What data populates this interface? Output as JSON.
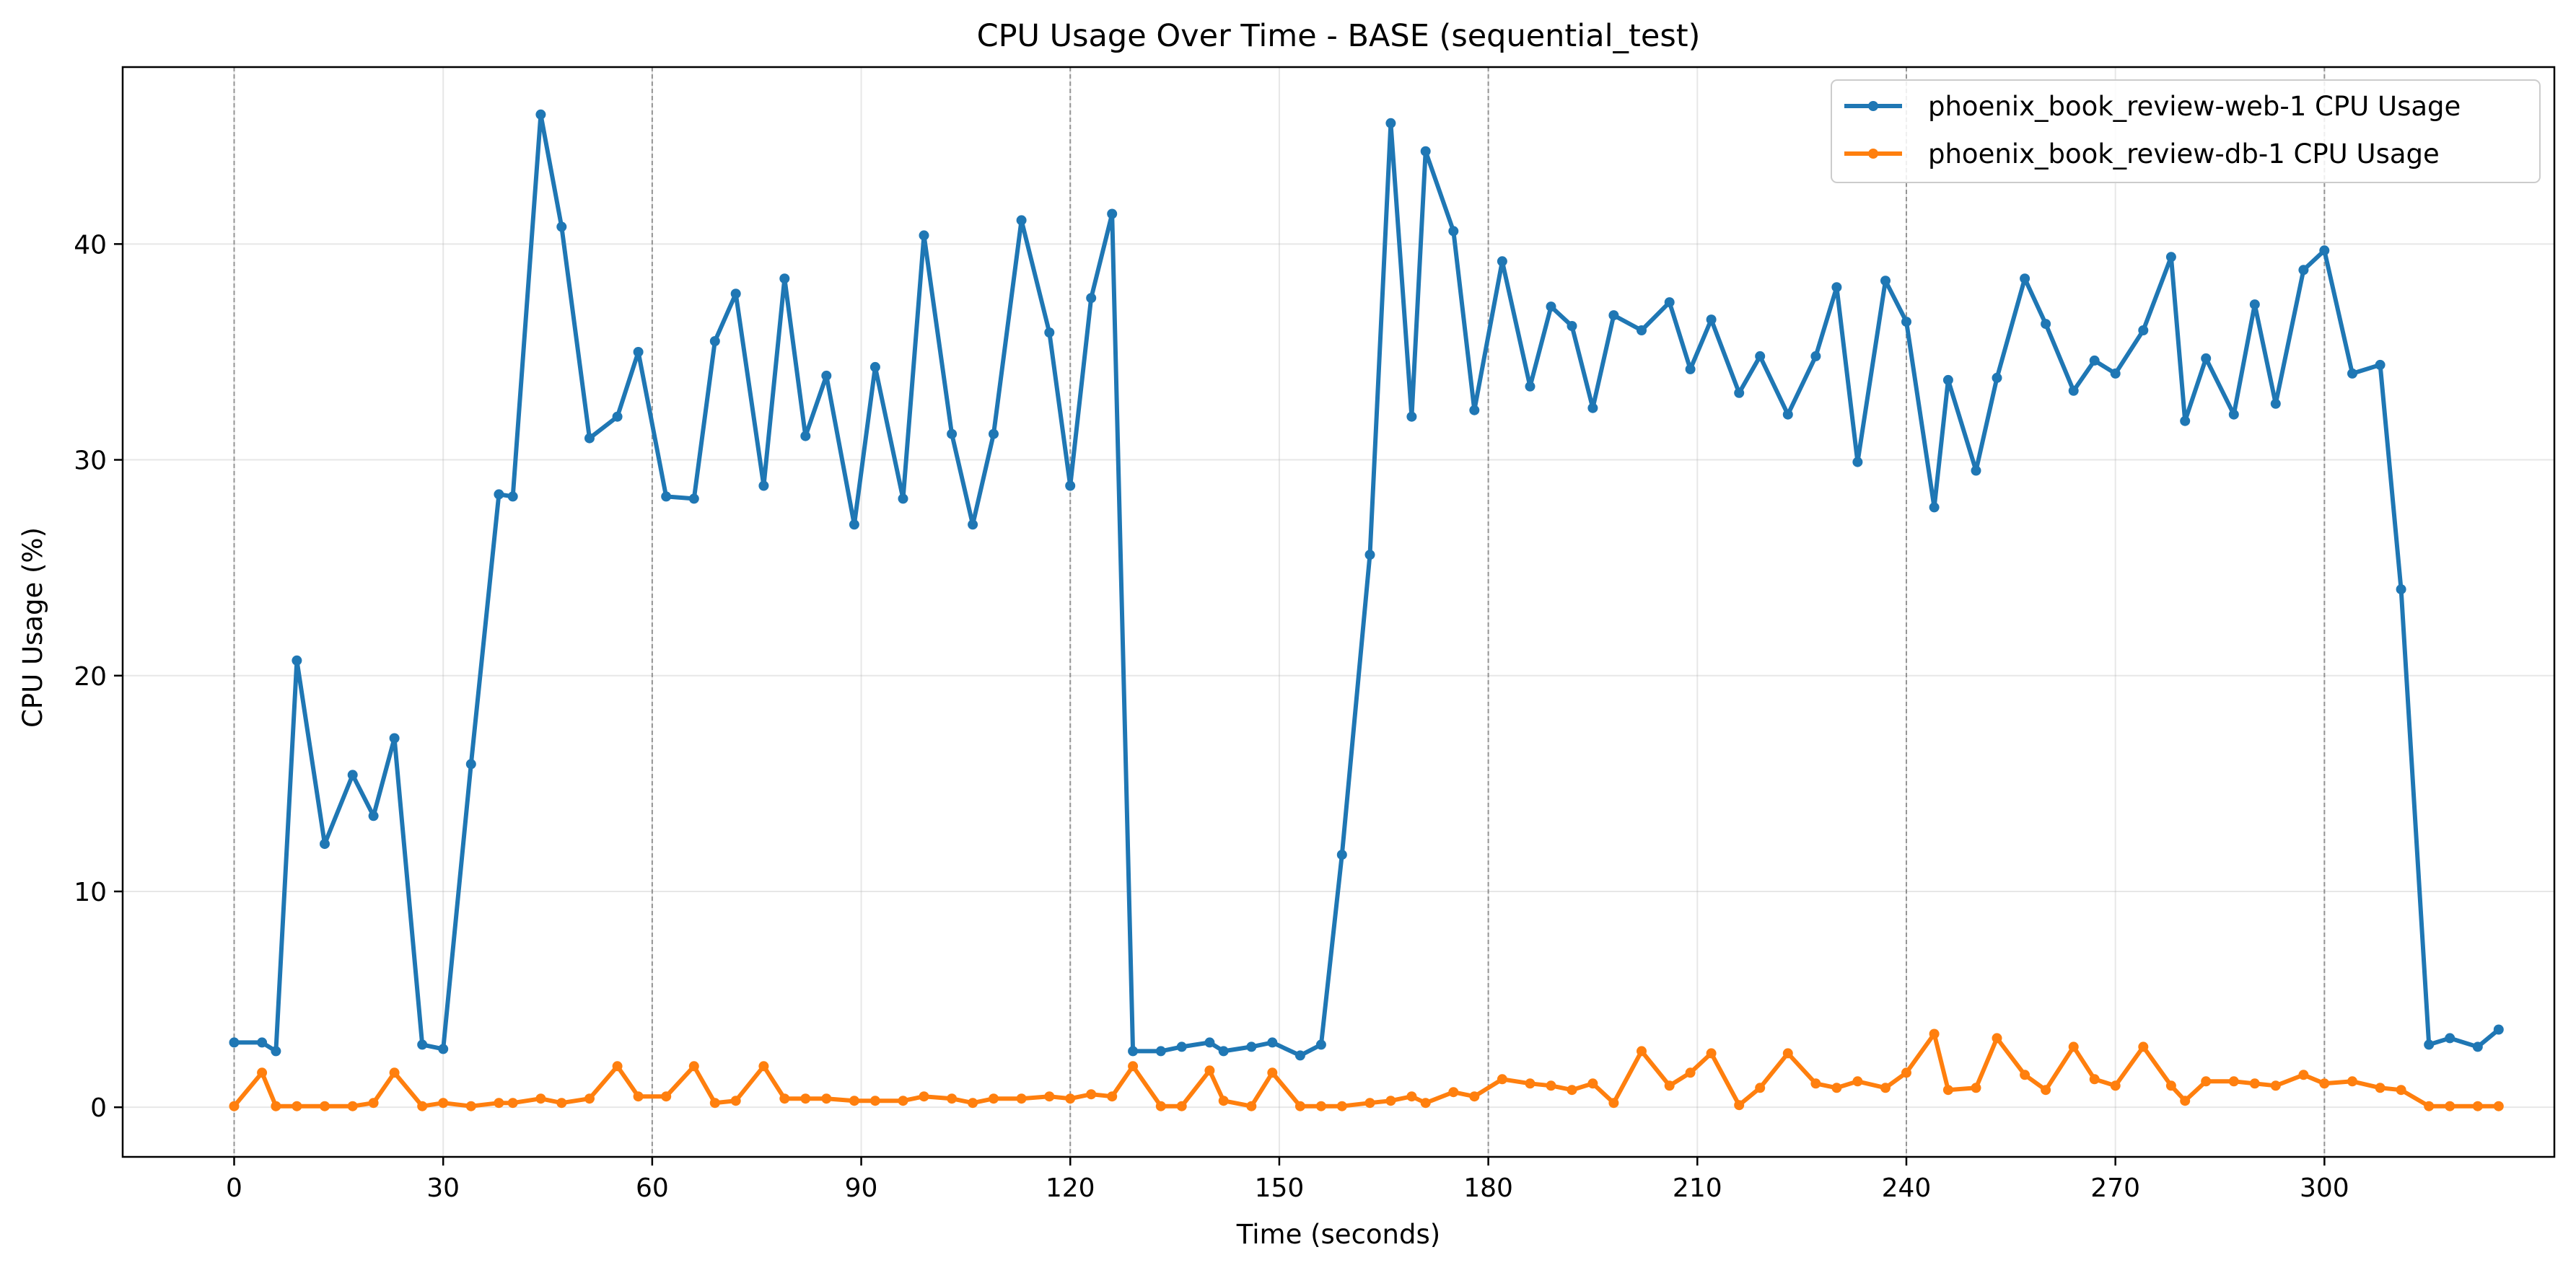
{
  "chart_data": {
    "type": "line",
    "title": "CPU Usage Over Time - BASE (sequential_test)",
    "xlabel": "Time (seconds)",
    "ylabel": "CPU Usage (%)",
    "xlim": [
      -16,
      333
    ],
    "ylim": [
      -2.3,
      48.2
    ],
    "xticks": [
      0,
      30,
      60,
      90,
      120,
      150,
      180,
      210,
      240,
      270,
      300
    ],
    "yticks": [
      0,
      10,
      20,
      30,
      40
    ],
    "vlines": [
      0,
      60,
      120,
      180,
      240,
      300
    ],
    "grid": true,
    "legend_position": "top-right",
    "series": [
      {
        "name": "phoenix_book_review-web-1 CPU Usage",
        "color": "#1f77b4",
        "points": [
          [
            0,
            3.0
          ],
          [
            4,
            3.0
          ],
          [
            6,
            2.6
          ],
          [
            9,
            20.7
          ],
          [
            13,
            12.2
          ],
          [
            17,
            15.4
          ],
          [
            20,
            13.5
          ],
          [
            23,
            17.1
          ],
          [
            27,
            2.9
          ],
          [
            30,
            2.7
          ],
          [
            34,
            15.9
          ],
          [
            38,
            28.4
          ],
          [
            40,
            28.3
          ],
          [
            44,
            46.0
          ],
          [
            47,
            40.8
          ],
          [
            51,
            31.0
          ],
          [
            55,
            32.0
          ],
          [
            58,
            35.0
          ],
          [
            62,
            28.3
          ],
          [
            66,
            28.2
          ],
          [
            69,
            35.5
          ],
          [
            72,
            37.7
          ],
          [
            76,
            28.8
          ],
          [
            79,
            38.4
          ],
          [
            82,
            31.1
          ],
          [
            85,
            33.9
          ],
          [
            89,
            27.0
          ],
          [
            92,
            34.3
          ],
          [
            96,
            28.2
          ],
          [
            99,
            40.4
          ],
          [
            103,
            31.2
          ],
          [
            106,
            27.0
          ],
          [
            109,
            31.2
          ],
          [
            113,
            41.1
          ],
          [
            117,
            35.9
          ],
          [
            120,
            28.8
          ],
          [
            123,
            37.5
          ],
          [
            126,
            41.4
          ],
          [
            129,
            2.6
          ],
          [
            133,
            2.6
          ],
          [
            136,
            2.8
          ],
          [
            140,
            3.0
          ],
          [
            142,
            2.6
          ],
          [
            146,
            2.8
          ],
          [
            149,
            3.0
          ],
          [
            153,
            2.4
          ],
          [
            156,
            2.9
          ],
          [
            159,
            11.7
          ],
          [
            163,
            25.6
          ],
          [
            166,
            45.6
          ],
          [
            169,
            32.0
          ],
          [
            171,
            44.3
          ],
          [
            175,
            40.6
          ],
          [
            178,
            32.3
          ],
          [
            182,
            39.2
          ],
          [
            186,
            33.4
          ],
          [
            189,
            37.1
          ],
          [
            192,
            36.2
          ],
          [
            195,
            32.4
          ],
          [
            198,
            36.7
          ],
          [
            202,
            36.0
          ],
          [
            206,
            37.3
          ],
          [
            209,
            34.2
          ],
          [
            212,
            36.5
          ],
          [
            216,
            33.1
          ],
          [
            219,
            34.8
          ],
          [
            223,
            32.1
          ],
          [
            227,
            34.8
          ],
          [
            230,
            38.0
          ],
          [
            233,
            29.9
          ],
          [
            237,
            38.3
          ],
          [
            240,
            36.4
          ],
          [
            244,
            27.8
          ],
          [
            246,
            33.7
          ],
          [
            250,
            29.5
          ],
          [
            253,
            33.8
          ],
          [
            257,
            38.4
          ],
          [
            260,
            36.3
          ],
          [
            264,
            33.2
          ],
          [
            267,
            34.6
          ],
          [
            270,
            34.0
          ],
          [
            274,
            36.0
          ],
          [
            278,
            39.4
          ],
          [
            280,
            31.8
          ],
          [
            283,
            34.7
          ],
          [
            287,
            32.1
          ],
          [
            290,
            37.2
          ],
          [
            293,
            32.6
          ],
          [
            297,
            38.8
          ],
          [
            300,
            39.7
          ],
          [
            304,
            34.0
          ],
          [
            308,
            34.4
          ],
          [
            311,
            24.0
          ],
          [
            315,
            2.9
          ],
          [
            318,
            3.2
          ],
          [
            322,
            2.8
          ],
          [
            325,
            3.6
          ]
        ]
      },
      {
        "name": "phoenix_book_review-db-1 CPU Usage",
        "color": "#ff7f0e",
        "points": [
          [
            0,
            0.05
          ],
          [
            4,
            1.6
          ],
          [
            6,
            0.05
          ],
          [
            9,
            0.05
          ],
          [
            13,
            0.05
          ],
          [
            17,
            0.05
          ],
          [
            20,
            0.2
          ],
          [
            23,
            1.6
          ],
          [
            27,
            0.05
          ],
          [
            30,
            0.2
          ],
          [
            34,
            0.05
          ],
          [
            38,
            0.2
          ],
          [
            40,
            0.2
          ],
          [
            44,
            0.4
          ],
          [
            47,
            0.2
          ],
          [
            51,
            0.4
          ],
          [
            55,
            1.9
          ],
          [
            58,
            0.5
          ],
          [
            62,
            0.5
          ],
          [
            66,
            1.9
          ],
          [
            69,
            0.2
          ],
          [
            72,
            0.3
          ],
          [
            76,
            1.9
          ],
          [
            79,
            0.4
          ],
          [
            82,
            0.4
          ],
          [
            85,
            0.4
          ],
          [
            89,
            0.3
          ],
          [
            92,
            0.3
          ],
          [
            96,
            0.3
          ],
          [
            99,
            0.5
          ],
          [
            103,
            0.4
          ],
          [
            106,
            0.2
          ],
          [
            109,
            0.4
          ],
          [
            113,
            0.4
          ],
          [
            117,
            0.5
          ],
          [
            120,
            0.4
          ],
          [
            123,
            0.6
          ],
          [
            126,
            0.5
          ],
          [
            129,
            1.9
          ],
          [
            133,
            0.05
          ],
          [
            136,
            0.05
          ],
          [
            140,
            1.7
          ],
          [
            142,
            0.3
          ],
          [
            146,
            0.05
          ],
          [
            149,
            1.6
          ],
          [
            153,
            0.05
          ],
          [
            156,
            0.05
          ],
          [
            159,
            0.05
          ],
          [
            163,
            0.2
          ],
          [
            166,
            0.3
          ],
          [
            169,
            0.5
          ],
          [
            171,
            0.2
          ],
          [
            175,
            0.7
          ],
          [
            178,
            0.5
          ],
          [
            182,
            1.3
          ],
          [
            186,
            1.1
          ],
          [
            189,
            1.0
          ],
          [
            192,
            0.8
          ],
          [
            195,
            1.1
          ],
          [
            198,
            0.2
          ],
          [
            202,
            2.6
          ],
          [
            206,
            1.0
          ],
          [
            209,
            1.6
          ],
          [
            212,
            2.5
          ],
          [
            216,
            0.1
          ],
          [
            219,
            0.9
          ],
          [
            223,
            2.5
          ],
          [
            227,
            1.1
          ],
          [
            230,
            0.9
          ],
          [
            233,
            1.2
          ],
          [
            237,
            0.9
          ],
          [
            240,
            1.6
          ],
          [
            244,
            3.4
          ],
          [
            246,
            0.8
          ],
          [
            250,
            0.9
          ],
          [
            253,
            3.2
          ],
          [
            257,
            1.5
          ],
          [
            260,
            0.8
          ],
          [
            264,
            2.8
          ],
          [
            267,
            1.3
          ],
          [
            270,
            1.0
          ],
          [
            274,
            2.8
          ],
          [
            278,
            1.0
          ],
          [
            280,
            0.3
          ],
          [
            283,
            1.2
          ],
          [
            287,
            1.2
          ],
          [
            290,
            1.1
          ],
          [
            293,
            1.0
          ],
          [
            297,
            1.5
          ],
          [
            300,
            1.1
          ],
          [
            304,
            1.2
          ],
          [
            308,
            0.9
          ],
          [
            311,
            0.8
          ],
          [
            315,
            0.05
          ],
          [
            318,
            0.05
          ],
          [
            322,
            0.05
          ],
          [
            325,
            0.05
          ]
        ]
      }
    ]
  }
}
